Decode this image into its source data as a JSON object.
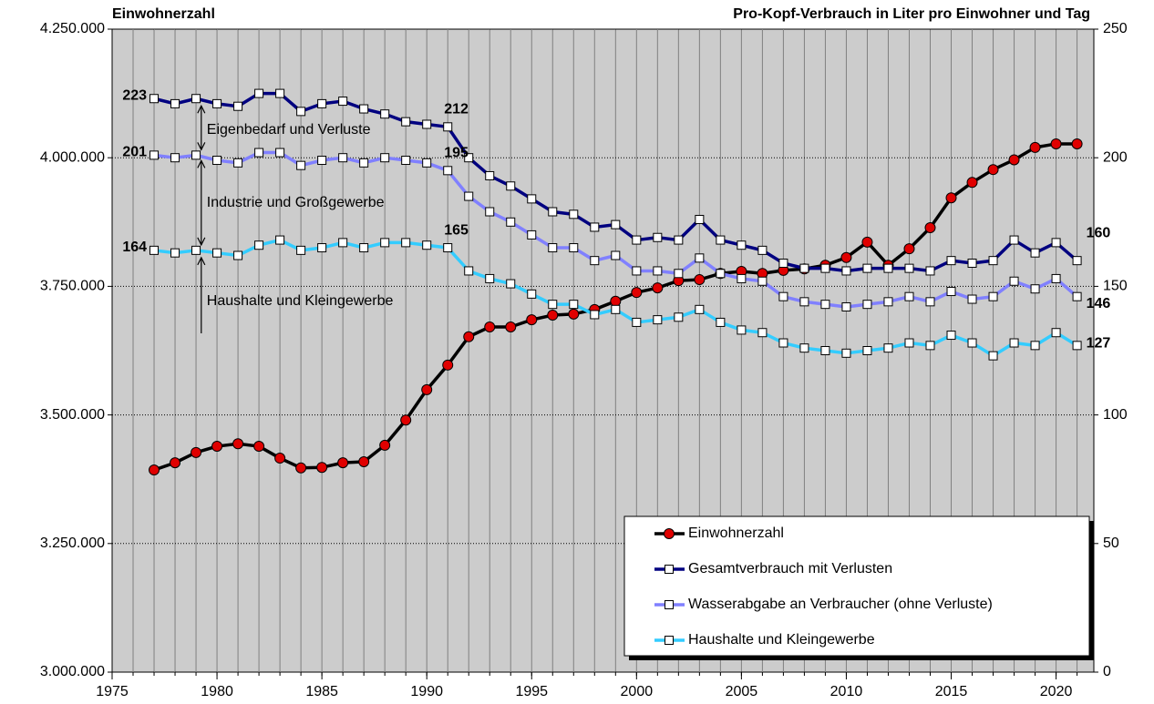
{
  "chart_data": {
    "type": "line",
    "y_title": "Einwohnerzahl",
    "y2_title": "Pro-Kopf-Verbrauch in Liter pro Einwohner und Tag",
    "annotations": [
      "Eigenbedarf und Verluste",
      "Industrie und Großgewerbe",
      "Haushalte und Kleingewerbe"
    ],
    "x": [
      1977,
      1978,
      1979,
      1980,
      1981,
      1982,
      1983,
      1984,
      1985,
      1986,
      1987,
      1988,
      1989,
      1990,
      1991,
      1992,
      1993,
      1994,
      1995,
      1996,
      1997,
      1998,
      1999,
      2000,
      2001,
      2002,
      2003,
      2004,
      2005,
      2006,
      2007,
      2008,
      2009,
      2010,
      2011,
      2012,
      2013,
      2014,
      2015,
      2016,
      2017,
      2018,
      2019,
      2020,
      2021
    ],
    "series": [
      {
        "name": "Einwohnerzahl",
        "color": "#000000",
        "marker_color": "#e00000",
        "axis": "y",
        "values": [
          3393000,
          3407000,
          3427000,
          3439000,
          3444000,
          3439000,
          3416000,
          3397000,
          3398000,
          3407000,
          3409000,
          3441000,
          3490000,
          3549000,
          3597000,
          3652000,
          3671000,
          3671000,
          3685000,
          3694000,
          3696000,
          3705000,
          3721000,
          3738000,
          3747000,
          3761000,
          3763000,
          3775000,
          3779000,
          3775000,
          3781000,
          3784000,
          3791000,
          3806000,
          3836000,
          3791000,
          3823000,
          3864000,
          3922000,
          3952000,
          3977000,
          3996000,
          4020000,
          4027000,
          4027000
        ]
      },
      {
        "name": "Gesamtverbrauch mit Verlusten",
        "color": "#000080",
        "marker_color": "#ffffff",
        "axis": "y2",
        "values": [
          223,
          221,
          223,
          221,
          220,
          225,
          225,
          218,
          221,
          222,
          219,
          217,
          214,
          213,
          212,
          200,
          193,
          189,
          184,
          179,
          178,
          173,
          174,
          168,
          169,
          168,
          176,
          168,
          166,
          164,
          159,
          157,
          157,
          156,
          157,
          157,
          157,
          156,
          160,
          159,
          160,
          168,
          163,
          167,
          160
        ]
      },
      {
        "name": "Wasserabgabe an Verbraucher (ohne Verluste)",
        "color": "#8080ff",
        "marker_color": "#ffffff",
        "axis": "y2",
        "values": [
          201,
          200,
          201,
          199,
          198,
          202,
          202,
          197,
          199,
          200,
          198,
          200,
          199,
          198,
          195,
          185,
          179,
          175,
          170,
          165,
          165,
          160,
          162,
          156,
          156,
          155,
          161,
          155,
          153,
          152,
          146,
          144,
          143,
          142,
          143,
          144,
          146,
          144,
          148,
          145,
          146,
          152,
          149,
          153,
          146
        ]
      },
      {
        "name": "Haushalte und Kleingewerbe",
        "color": "#33ccff",
        "marker_color": "#ffffff",
        "axis": "y2",
        "values": [
          164,
          163,
          164,
          163,
          162,
          166,
          168,
          164,
          165,
          167,
          165,
          167,
          167,
          166,
          165,
          156,
          153,
          151,
          147,
          143,
          143,
          139,
          141,
          136,
          137,
          138,
          141,
          136,
          133,
          132,
          128,
          126,
          125,
          124,
          125,
          126,
          128,
          127,
          131,
          128,
          123,
          128,
          127,
          132,
          127
        ]
      }
    ],
    "xlim": [
      1975,
      2021.8
    ],
    "xticks": [
      1975,
      1980,
      1985,
      1990,
      1995,
      2000,
      2005,
      2010,
      2015,
      2020
    ],
    "xminor_ticks": [
      1976,
      1977,
      1978,
      1979,
      1980,
      1981,
      1982,
      1983,
      1984,
      1985,
      1986,
      1987,
      1988,
      1989,
      1990,
      1991,
      1992,
      1993,
      1994,
      1995,
      1996,
      1997,
      1998,
      1999,
      2000,
      2001,
      2002,
      2003,
      2004,
      2005,
      2006,
      2007,
      2008,
      2009,
      2010,
      2011,
      2012,
      2013,
      2014,
      2015,
      2016,
      2017,
      2018,
      2019,
      2020,
      2021
    ],
    "ylim": [
      3000000,
      4250000
    ],
    "yticks": [
      {
        "value": 3000000,
        "label": "3.000.000"
      },
      {
        "value": 3250000,
        "label": "3.250.000"
      },
      {
        "value": 3500000,
        "label": "3.500.000"
      },
      {
        "value": 3750000,
        "label": "3.750.000"
      },
      {
        "value": 4000000,
        "label": "4.000.000"
      },
      {
        "value": 4250000,
        "label": "4.250.000"
      }
    ],
    "y2lim": [
      0,
      250
    ],
    "y2ticks": [
      0,
      50,
      100,
      150,
      200,
      250
    ],
    "grid": true,
    "legend": "lower right",
    "plot_background": "#cccccc"
  }
}
